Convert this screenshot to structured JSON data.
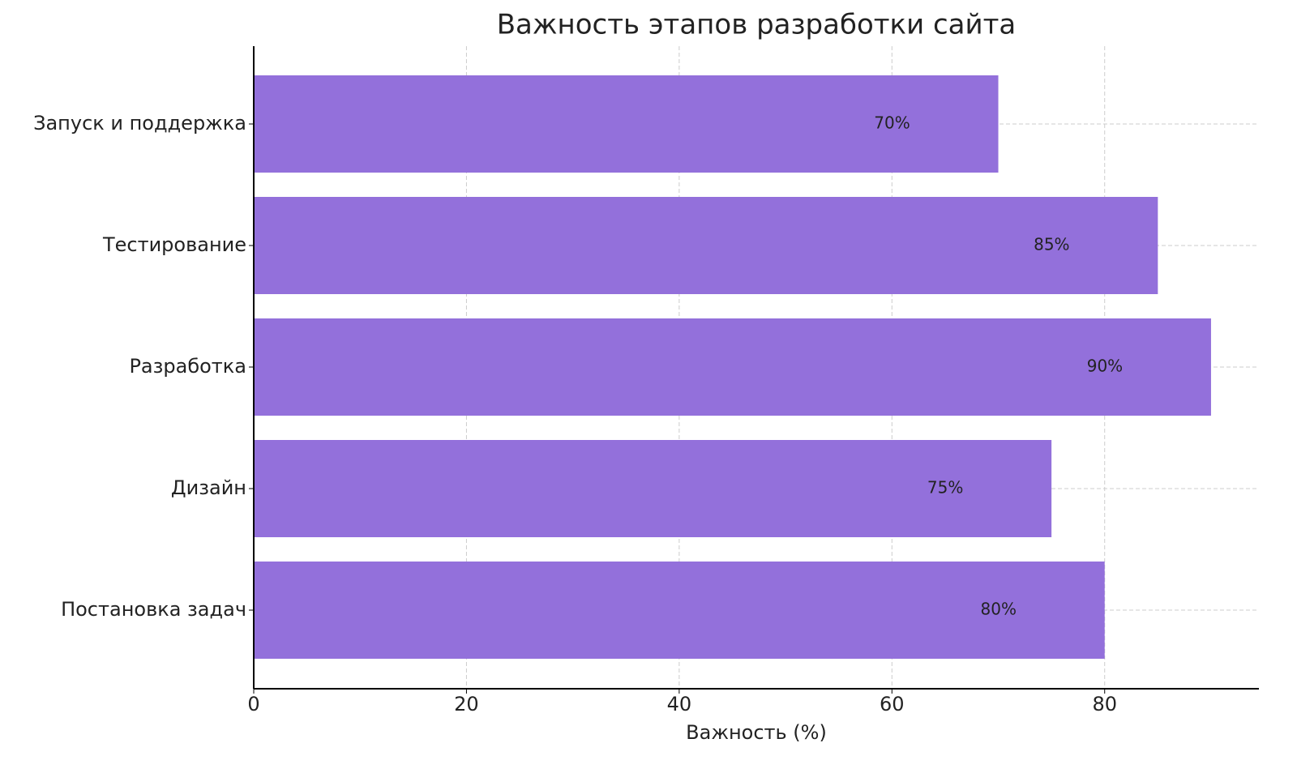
{
  "chart_data": {
    "type": "barh",
    "title": "Важность этапов разработки сайта",
    "x_label": "Важность (%)",
    "categories": [
      "Постановка задач",
      "Дизайн",
      "Разработка",
      "Тестирование",
      "Запуск и поддержка"
    ],
    "values": [
      80,
      75,
      90,
      85,
      70
    ],
    "value_labels": [
      "80%",
      "75%",
      "90%",
      "85%",
      "70%"
    ],
    "color": "#9370DB",
    "xlim": [
      0,
      94.5
    ],
    "xticks": [
      0,
      20,
      40,
      60,
      80
    ],
    "grid": true
  }
}
